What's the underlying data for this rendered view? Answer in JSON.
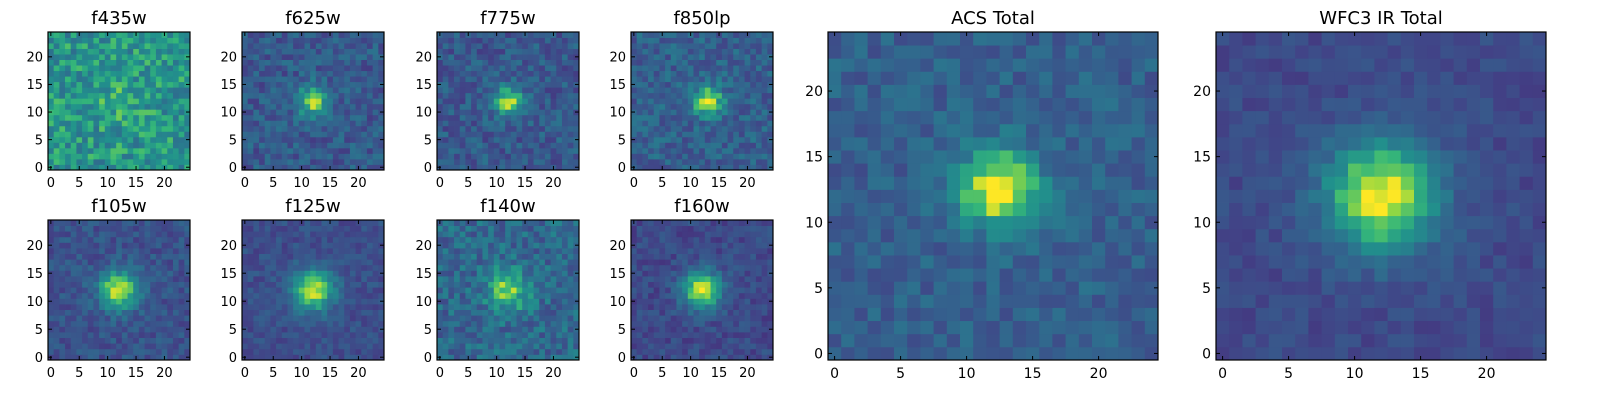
{
  "chart_data": [
    {
      "type": "heatmap",
      "title": "f435w",
      "colormap": "viridis",
      "grid_size": [
        25,
        25
      ],
      "peak_center": [
        12,
        12
      ],
      "peak_strength": 0.1,
      "peak_sigma": 3.0,
      "noise": 0.34,
      "baseline": 0.62,
      "seed": 3,
      "xlim": [
        0,
        24
      ],
      "ylim": [
        0,
        24
      ],
      "xticks": [
        "0",
        "5",
        "10",
        "15",
        "20"
      ],
      "yticks": [
        "0",
        "5",
        "10",
        "15",
        "20"
      ]
    },
    {
      "type": "heatmap",
      "title": "f625w",
      "colormap": "viridis",
      "grid_size": [
        25,
        25
      ],
      "peak_center": [
        12,
        12
      ],
      "peak_strength": 0.55,
      "peak_sigma": 1.9,
      "noise": 0.26,
      "baseline": 0.35,
      "seed": 7,
      "xlim": [
        0,
        24
      ],
      "ylim": [
        0,
        24
      ],
      "xticks": [
        "0",
        "5",
        "10",
        "15",
        "20"
      ],
      "yticks": [
        "0",
        "5",
        "10",
        "15",
        "20"
      ]
    },
    {
      "type": "heatmap",
      "title": "f775w",
      "colormap": "viridis",
      "grid_size": [
        25,
        25
      ],
      "peak_center": [
        12,
        12
      ],
      "peak_strength": 0.55,
      "peak_sigma": 1.9,
      "noise": 0.26,
      "baseline": 0.35,
      "seed": 11,
      "xlim": [
        0,
        24
      ],
      "ylim": [
        0,
        24
      ],
      "xticks": [
        "0",
        "5",
        "10",
        "15",
        "20"
      ],
      "yticks": [
        "0",
        "5",
        "10",
        "15",
        "20"
      ]
    },
    {
      "type": "heatmap",
      "title": "f850lp",
      "colormap": "viridis",
      "grid_size": [
        25,
        25
      ],
      "peak_center": [
        13,
        12
      ],
      "peak_strength": 0.55,
      "peak_sigma": 1.9,
      "noise": 0.26,
      "baseline": 0.38,
      "seed": 13,
      "xlim": [
        0,
        24
      ],
      "ylim": [
        0,
        24
      ],
      "xticks": [
        "0",
        "5",
        "10",
        "15",
        "20"
      ],
      "yticks": [
        "0",
        "5",
        "10",
        "15",
        "20"
      ]
    },
    {
      "type": "heatmap",
      "title": "ACS Total",
      "colormap": "viridis",
      "grid_size": [
        25,
        25
      ],
      "peak_center": [
        12.5,
        12.5
      ],
      "peak_strength": 0.65,
      "peak_sigma": 2.1,
      "noise": 0.2,
      "baseline": 0.38,
      "seed": 17,
      "xlim": [
        0,
        24
      ],
      "ylim": [
        0,
        24
      ],
      "xticks": [
        "0",
        "5",
        "10",
        "15",
        "20"
      ],
      "yticks": [
        "0",
        "5",
        "10",
        "15",
        "20"
      ]
    },
    {
      "type": "heatmap",
      "title": "WFC3 IR Total",
      "colormap": "viridis",
      "grid_size": [
        25,
        25
      ],
      "peak_center": [
        12,
        12
      ],
      "peak_strength": 0.72,
      "peak_sigma": 3.0,
      "noise": 0.13,
      "baseline": 0.28,
      "seed": 19,
      "xlim": [
        0,
        24
      ],
      "ylim": [
        0,
        24
      ],
      "xticks": [
        "0",
        "5",
        "10",
        "15",
        "20"
      ],
      "yticks": [
        "0",
        "5",
        "10",
        "15",
        "20"
      ]
    },
    {
      "type": "heatmap",
      "title": "f105w",
      "colormap": "viridis",
      "grid_size": [
        25,
        25
      ],
      "peak_center": [
        12,
        12
      ],
      "peak_strength": 0.65,
      "peak_sigma": 2.4,
      "noise": 0.2,
      "baseline": 0.32,
      "seed": 23,
      "xlim": [
        0,
        24
      ],
      "ylim": [
        0,
        24
      ],
      "xticks": [
        "0",
        "5",
        "10",
        "15",
        "20"
      ],
      "yticks": [
        "0",
        "5",
        "10",
        "15",
        "20"
      ]
    },
    {
      "type": "heatmap",
      "title": "f125w",
      "colormap": "viridis",
      "grid_size": [
        25,
        25
      ],
      "peak_center": [
        12,
        12
      ],
      "peak_strength": 0.65,
      "peak_sigma": 2.6,
      "noise": 0.17,
      "baseline": 0.3,
      "seed": 29,
      "xlim": [
        0,
        24
      ],
      "ylim": [
        0,
        24
      ],
      "xticks": [
        "0",
        "5",
        "10",
        "15",
        "20"
      ],
      "yticks": [
        "0",
        "5",
        "10",
        "15",
        "20"
      ]
    },
    {
      "type": "heatmap",
      "title": "f140w",
      "colormap": "viridis",
      "grid_size": [
        25,
        25
      ],
      "peak_center": [
        12,
        12
      ],
      "peak_strength": 0.45,
      "peak_sigma": 2.6,
      "noise": 0.3,
      "baseline": 0.42,
      "seed": 31,
      "xlim": [
        0,
        24
      ],
      "ylim": [
        0,
        24
      ],
      "xticks": [
        "0",
        "5",
        "10",
        "15",
        "20"
      ],
      "yticks": [
        "0",
        "5",
        "10",
        "15",
        "20"
      ]
    },
    {
      "type": "heatmap",
      "title": "f160w",
      "colormap": "viridis",
      "grid_size": [
        25,
        25
      ],
      "peak_center": [
        12,
        12
      ],
      "peak_strength": 0.68,
      "peak_sigma": 2.4,
      "noise": 0.18,
      "baseline": 0.28,
      "seed": 37,
      "xlim": [
        0,
        24
      ],
      "ylim": [
        0,
        24
      ],
      "xticks": [
        "0",
        "5",
        "10",
        "15",
        "20"
      ],
      "yticks": [
        "0",
        "5",
        "10",
        "15",
        "20"
      ]
    }
  ]
}
